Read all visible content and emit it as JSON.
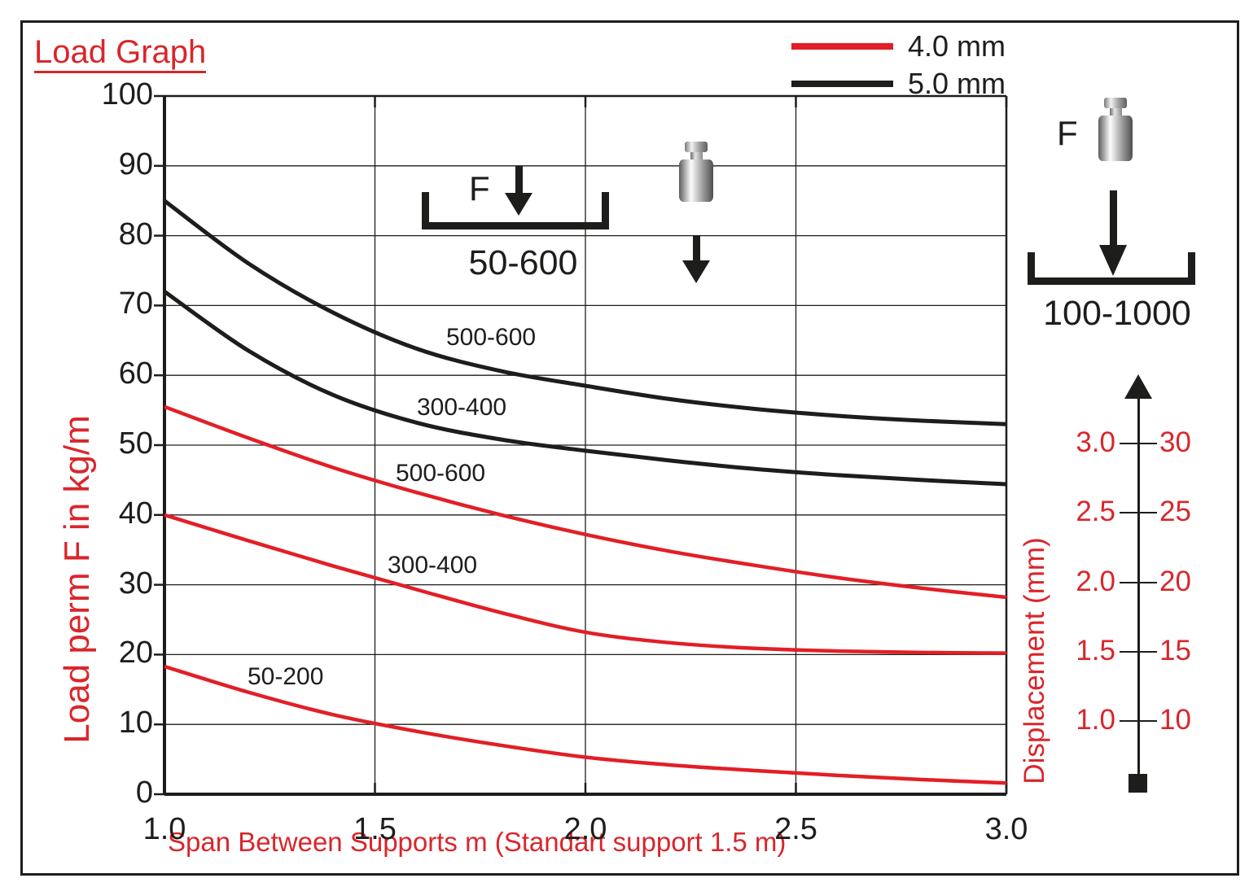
{
  "title": "Load Graph",
  "legend": {
    "items": [
      {
        "label": "4.0 mm",
        "color": "#e21f26"
      },
      {
        "label": "5.0 mm",
        "color": "#1d1d1b"
      }
    ]
  },
  "axes": {
    "x_label": "Span Between Supports m (Standart support 1.5 m)",
    "y_label": "Load perm F in kg/m",
    "x_ticks": [
      "1.0",
      "1.5",
      "2.0",
      "2.5",
      "3.0"
    ],
    "y_ticks": [
      "0",
      "10",
      "20",
      "30",
      "40",
      "50",
      "60",
      "70",
      "80",
      "90",
      "100"
    ]
  },
  "chart_data": {
    "type": "line",
    "title": "Load Graph",
    "xlabel": "Span Between Supports m (Standart support 1.5 m)",
    "ylabel": "Load perm F in kg/m",
    "xlim": [
      1.0,
      3.0
    ],
    "ylim": [
      0,
      100
    ],
    "grid": true,
    "x_gridlines": [
      1.5,
      2.0,
      2.5
    ],
    "y_gridlines": [
      10,
      20,
      30,
      40,
      50,
      60,
      70,
      80,
      90
    ],
    "legend_position": "top-right",
    "x": [
      1.0,
      1.2,
      1.4,
      1.6,
      1.8,
      2.0,
      2.2,
      2.4,
      2.6,
      2.8,
      3.0
    ],
    "series": [
      {
        "name": "5.0 mm 500-600",
        "thickness": "5.0 mm",
        "range": "500-600",
        "color": "#1d1d1b",
        "width": 5,
        "values": [
          85,
          76,
          69,
          63.8,
          60.6,
          58.5,
          56.6,
          55.2,
          54.2,
          53.5,
          53
        ]
      },
      {
        "name": "5.0 mm 300-400",
        "thickness": "5.0 mm",
        "range": "300-400",
        "color": "#1d1d1b",
        "width": 5,
        "values": [
          72,
          63.5,
          57.2,
          53.2,
          50.8,
          49.2,
          47.8,
          46.6,
          45.7,
          45,
          44.4
        ]
      },
      {
        "name": "4.0 mm 500-600",
        "thickness": "4.0 mm",
        "range": "500-600",
        "color": "#e21f26",
        "width": 4.5,
        "values": [
          55.5,
          51,
          46.8,
          43.2,
          40,
          37.2,
          34.8,
          32.8,
          31,
          29.5,
          28.2
        ]
      },
      {
        "name": "4.0 mm 300-400",
        "thickness": "4.0 mm",
        "range": "300-400",
        "color": "#e21f26",
        "width": 4.5,
        "values": [
          40,
          36.3,
          32.7,
          29.3,
          26,
          23.2,
          21.7,
          20.9,
          20.5,
          20.3,
          20.2
        ]
      },
      {
        "name": "4.0 mm 50-200",
        "thickness": "4.0 mm",
        "range": "50-200",
        "color": "#e21f26",
        "width": 4.5,
        "values": [
          18.3,
          14.6,
          11.4,
          9.0,
          7.0,
          5.3,
          4.2,
          3.4,
          2.7,
          2.1,
          1.6
        ]
      }
    ]
  },
  "curve_labels": [
    {
      "text": "500-600"
    },
    {
      "text": "300-400"
    },
    {
      "text": "500-600"
    },
    {
      "text": "300-400"
    },
    {
      "text": "50-200"
    }
  ],
  "annotations": {
    "load_zone": {
      "f_label": "F",
      "range_label": "50-600"
    },
    "right_assembly": {
      "f_label": "F",
      "range_label": "100-1000"
    },
    "displacement": {
      "label": "Displacement (mm)",
      "left_ticks": [
        "3.0",
        "2.5",
        "2.0",
        "1.5",
        "1.0"
      ],
      "right_ticks": [
        "30",
        "25",
        "20",
        "15",
        "10"
      ]
    }
  }
}
